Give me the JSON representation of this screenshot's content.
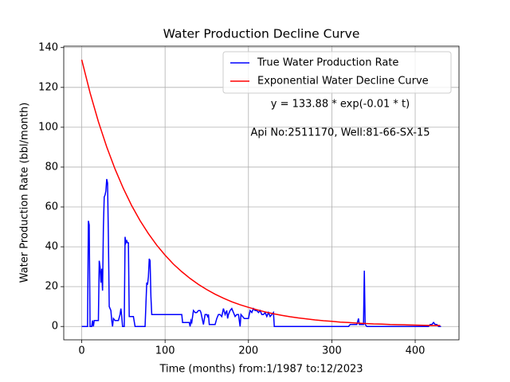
{
  "chart_data": {
    "type": "line",
    "title": "Water Production Decline Curve",
    "x_label": "Time (months) from:1/1987 to:12/2023",
    "y_label": "Water Production Rate (bbl/month)",
    "annotations": [
      "y = 133.88 * exp(-0.01 * t)",
      "Api No:2511170, Well:81-66-SX-15"
    ],
    "xlim": [
      -21.55,
      452.55
    ],
    "ylim": [
      -6.7,
      140.7
    ],
    "xticks": [
      0,
      100,
      200,
      300,
      400
    ],
    "yticks": [
      0,
      20,
      40,
      60,
      80,
      100,
      120,
      140
    ],
    "grid": true,
    "legend": "upper right",
    "series": [
      {
        "name": "True Water Production Rate",
        "color": "#0000ff",
        "x": [
          0,
          7,
          8,
          9,
          10,
          12,
          13,
          14,
          15,
          18,
          20,
          21,
          22,
          23,
          24,
          25,
          26,
          27,
          28,
          29,
          30,
          31,
          32,
          33,
          35,
          36,
          37,
          38,
          40,
          44,
          46,
          47,
          48,
          49,
          51,
          52,
          53,
          54,
          55,
          56,
          57,
          58,
          62,
          64,
          75,
          76,
          78,
          79,
          80,
          81,
          82,
          83,
          84,
          120,
          121,
          124,
          129,
          130,
          131,
          132,
          134,
          136,
          138,
          140,
          142,
          143,
          146,
          148,
          150,
          151,
          152,
          153,
          160,
          162,
          164,
          166,
          168,
          170,
          172,
          174,
          175,
          176,
          178,
          180,
          182,
          184,
          186,
          188,
          190,
          191,
          193,
          195,
          200,
          202,
          204,
          206,
          208,
          210,
          212,
          214,
          216,
          218,
          220,
          222,
          224,
          226,
          228,
          230,
          231,
          320,
          322,
          330,
          332,
          333,
          338,
          339,
          340,
          342,
          416,
          418,
          420,
          422,
          424,
          426,
          428,
          431
        ],
        "values": [
          0,
          0,
          53,
          51,
          0,
          0,
          3,
          0,
          3,
          3,
          3,
          33,
          30,
          22,
          29,
          18,
          50,
          65,
          66,
          68,
          74,
          72,
          45,
          10,
          8,
          3,
          0,
          4,
          3,
          3,
          6,
          9,
          5,
          0,
          0,
          45,
          42,
          43,
          42,
          42,
          5,
          5,
          5,
          0,
          0,
          0,
          22,
          21,
          25,
          34,
          33,
          15,
          6,
          6,
          2,
          2,
          2,
          0,
          3,
          2,
          8,
          7,
          7,
          8,
          8,
          7,
          1,
          6,
          6,
          5,
          6,
          1,
          1,
          4,
          6,
          6,
          5,
          9,
          6,
          8,
          4,
          6,
          8,
          9,
          7,
          5,
          6,
          6,
          0,
          6,
          5,
          4,
          4,
          8,
          7,
          9,
          8,
          8,
          7,
          8,
          6,
          6,
          7,
          5,
          7,
          5,
          6,
          7,
          0,
          0,
          1,
          1,
          4,
          1,
          1,
          28,
          1,
          0,
          0,
          1,
          1,
          2,
          1,
          1,
          0,
          0
        ]
      },
      {
        "name": "Exponential Water Decline Curve",
        "color": "#ff0000",
        "x": [
          0,
          10,
          20,
          30,
          40,
          50,
          60,
          70,
          80,
          90,
          100,
          110,
          120,
          130,
          140,
          150,
          160,
          170,
          180,
          190,
          200,
          210,
          220,
          230,
          240,
          250,
          260,
          270,
          280,
          290,
          300,
          310,
          320,
          330,
          340,
          350,
          360,
          370,
          380,
          390,
          400,
          410,
          420,
          430
        ],
        "values": [
          133.88,
          117.3,
          102.8,
          90.1,
          79.0,
          69.2,
          60.6,
          53.1,
          46.6,
          40.8,
          35.8,
          31.3,
          27.5,
          24.1,
          21.1,
          18.5,
          16.2,
          14.2,
          12.4,
          10.9,
          9.6,
          8.4,
          7.3,
          6.4,
          5.6,
          4.9,
          4.3,
          3.8,
          3.3,
          2.9,
          2.6,
          2.2,
          2.0,
          1.7,
          1.5,
          1.3,
          1.2,
          1.0,
          0.9,
          0.8,
          0.7,
          0.6,
          0.5,
          0.5
        ]
      }
    ]
  }
}
